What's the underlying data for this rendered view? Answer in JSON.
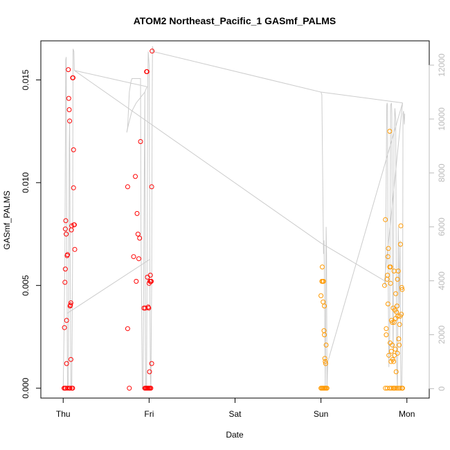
{
  "chart_data": {
    "type": "scatter",
    "title": "ATOM2 Northeast_Pacific_1 GASmf_PALMS",
    "xlabel": "Date",
    "ylabel": "GASmf_PALMS",
    "x_ticks": [
      "Thu",
      "Fri",
      "Sat",
      "Sun",
      "Mon"
    ],
    "x_unit": "days since first tick label",
    "xlim": [
      -0.26,
      4.26
    ],
    "ylim": [
      -0.00048,
      0.0169
    ],
    "y_ticks": [
      "0.000",
      "0.005",
      "0.010",
      "0.015"
    ],
    "y2_ticks": [
      "0",
      "2000",
      "4000",
      "6000",
      "8000",
      "10000",
      "12000"
    ],
    "y2lim": [
      -350,
      12900
    ],
    "colors": {
      "series1": "#ff0000",
      "series2": "#ff9900",
      "altitude_line": "#cccccc"
    },
    "series": [
      {
        "color": "#ff0000",
        "points": [
          [
            0.01,
            0
          ],
          [
            0.02,
            0
          ],
          [
            0.03,
            0
          ],
          [
            0.05,
            0
          ],
          [
            0.07,
            0
          ],
          [
            0.08,
            0
          ],
          [
            0.1,
            0
          ],
          [
            0.11,
            0
          ],
          [
            0.015,
            0.00295
          ],
          [
            0.02,
            0.00515
          ],
          [
            0.025,
            0.0058
          ],
          [
            0.025,
            0.00775
          ],
          [
            0.03,
            0.00815
          ],
          [
            0.035,
            0.0075
          ],
          [
            0.04,
            0.0033
          ],
          [
            0.04,
            0.0012
          ],
          [
            0.045,
            0.00645
          ],
          [
            0.05,
            0.0065
          ],
          [
            0.06,
            0.0155
          ],
          [
            0.065,
            0.0141
          ],
          [
            0.07,
            0.01355
          ],
          [
            0.075,
            0.013
          ],
          [
            0.08,
            0.004
          ],
          [
            0.085,
            0.00405
          ],
          [
            0.09,
            0.00415
          ],
          [
            0.09,
            0.0014
          ],
          [
            0.095,
            0.0077
          ],
          [
            0.1,
            0.0079
          ],
          [
            0.11,
            0.0151
          ],
          [
            0.115,
            0.0151
          ],
          [
            0.12,
            0.0116
          ],
          [
            0.12,
            0.00975
          ],
          [
            0.125,
            0.00795
          ],
          [
            0.13,
            0.00795
          ],
          [
            0.135,
            0.00675
          ],
          [
            0.75,
            0.0098
          ],
          [
            0.75,
            0.0029
          ],
          [
            0.77,
            0
          ],
          [
            0.82,
            0.0064
          ],
          [
            0.84,
            0.0103
          ],
          [
            0.85,
            0.0052
          ],
          [
            0.86,
            0.0085
          ],
          [
            0.87,
            0.0075
          ],
          [
            0.88,
            0.0063
          ],
          [
            0.89,
            0.0073
          ],
          [
            0.9,
            0.012
          ],
          [
            0.95,
            0
          ],
          [
            0.96,
            0
          ],
          [
            0.97,
            0
          ],
          [
            0.98,
            0
          ],
          [
            0.99,
            0
          ],
          [
            1.0,
            0
          ],
          [
            1.01,
            0
          ],
          [
            1.02,
            0
          ],
          [
            0.94,
            0.0039
          ],
          [
            0.955,
            0.0039
          ],
          [
            0.97,
            0.0154
          ],
          [
            0.975,
            0.0154
          ],
          [
            0.98,
            0.0054
          ],
          [
            0.99,
            0.00395
          ],
          [
            0.995,
            0.0039
          ],
          [
            1.0,
            0.0051
          ],
          [
            1.005,
            0.0008
          ],
          [
            1.01,
            0.0052
          ],
          [
            1.015,
            0.0055
          ],
          [
            1.02,
            0.0052
          ],
          [
            1.025,
            0.0052
          ],
          [
            1.03,
            0.0012
          ],
          [
            1.03,
            0.0098
          ],
          [
            1.035,
            0.0164
          ]
        ]
      },
      {
        "color": "#ff9900",
        "points": [
          [
            3.0,
            0
          ],
          [
            3.01,
            0
          ],
          [
            3.02,
            0
          ],
          [
            3.03,
            0
          ],
          [
            3.04,
            0
          ],
          [
            3.05,
            0
          ],
          [
            3.06,
            0
          ],
          [
            3.07,
            0
          ],
          [
            3.0,
            0.0045
          ],
          [
            3.01,
            0.0052
          ],
          [
            3.015,
            0.0059
          ],
          [
            3.02,
            0.0052
          ],
          [
            3.025,
            0.0042
          ],
          [
            3.03,
            0.0052
          ],
          [
            3.035,
            0.0028
          ],
          [
            3.04,
            0.004
          ],
          [
            3.04,
            0.0026
          ],
          [
            3.045,
            0.00145
          ],
          [
            3.05,
            0.0013
          ],
          [
            3.055,
            0.0012
          ],
          [
            3.06,
            0.0021
          ],
          [
            3.75,
            0
          ],
          [
            3.77,
            0
          ],
          [
            3.8,
            0
          ],
          [
            3.82,
            0
          ],
          [
            3.84,
            0
          ],
          [
            3.85,
            0
          ],
          [
            3.86,
            0
          ],
          [
            3.88,
            0
          ],
          [
            3.9,
            0
          ],
          [
            3.92,
            0
          ],
          [
            3.94,
            0
          ],
          [
            3.95,
            0
          ],
          [
            3.74,
            0.005
          ],
          [
            3.75,
            0.0082
          ],
          [
            3.76,
            0.0026
          ],
          [
            3.76,
            0.0029
          ],
          [
            3.77,
            0.0053
          ],
          [
            3.775,
            0.0055
          ],
          [
            3.78,
            0.0041
          ],
          [
            3.78,
            0.0064
          ],
          [
            3.785,
            0.0068
          ],
          [
            3.79,
            0.0016
          ],
          [
            3.8,
            0.0125
          ],
          [
            3.8,
            0.0059
          ],
          [
            3.805,
            0.0022
          ],
          [
            3.81,
            0.0051
          ],
          [
            3.81,
            0.0059
          ],
          [
            3.815,
            0.0013
          ],
          [
            3.82,
            0.0033
          ],
          [
            3.82,
            0.0018
          ],
          [
            3.83,
            0.0021
          ],
          [
            3.83,
            0.0032
          ],
          [
            3.835,
            0.0014
          ],
          [
            3.84,
            0.0039
          ],
          [
            3.845,
            0.0013
          ],
          [
            3.85,
            0.0057
          ],
          [
            3.85,
            0.0032
          ],
          [
            3.855,
            0.0016
          ],
          [
            3.86,
            0.0038
          ],
          [
            3.865,
            0.0019
          ],
          [
            3.87,
            0.0034
          ],
          [
            3.87,
            0.0046
          ],
          [
            3.875,
            0.0008
          ],
          [
            3.88,
            0.0037
          ],
          [
            3.885,
            0.004
          ],
          [
            3.89,
            0.0053
          ],
          [
            3.89,
            0.0017
          ],
          [
            3.895,
            0.0035
          ],
          [
            3.9,
            0.0057
          ],
          [
            3.905,
            0.0024
          ],
          [
            3.91,
            0.0021
          ],
          [
            3.915,
            0.0031
          ],
          [
            3.92,
            0.0035
          ],
          [
            3.925,
            0.007
          ],
          [
            3.93,
            0.0079
          ],
          [
            3.935,
            0.0036
          ],
          [
            3.94,
            0.0049
          ],
          [
            3.945,
            0.0048
          ]
        ]
      }
    ],
    "altitude_series": {
      "axis": "right",
      "points": [
        [
          0.0,
          0
        ],
        [
          0.01,
          2000
        ],
        [
          0.02,
          5000
        ],
        [
          0.03,
          12200
        ],
        [
          0.035,
          12300
        ],
        [
          0.04,
          8000
        ],
        [
          0.045,
          3000
        ],
        [
          0.05,
          0
        ],
        [
          0.06,
          0
        ],
        [
          0.065,
          4000
        ],
        [
          0.07,
          9000
        ],
        [
          0.075,
          10000
        ],
        [
          0.08,
          6000
        ],
        [
          0.09,
          0
        ],
        [
          0.1,
          0
        ],
        [
          0.11,
          5000
        ],
        [
          0.115,
          12600
        ],
        [
          0.125,
          12500
        ],
        [
          0.13,
          11800
        ],
        [
          0.975,
          11200
        ],
        [
          0.95,
          11000
        ],
        [
          0.9,
          10800
        ],
        [
          0.85,
          10600
        ],
        [
          0.8,
          10300
        ],
        [
          0.76,
          9800
        ],
        [
          0.74,
          9500
        ],
        [
          0.745,
          9600
        ],
        [
          0.75,
          9700
        ],
        [
          0.77,
          11000
        ],
        [
          0.79,
          11400
        ],
        [
          0.8,
          11500
        ],
        [
          0.85,
          11500
        ],
        [
          0.9,
          11500
        ],
        [
          0.905,
          6000
        ],
        [
          0.92,
          0
        ],
        [
          0.93,
          0
        ],
        [
          0.94,
          6000
        ],
        [
          0.95,
          11000
        ],
        [
          0.955,
          3000
        ],
        [
          0.96,
          0
        ],
        [
          0.97,
          0
        ],
        [
          0.98,
          8000
        ],
        [
          0.985,
          11500
        ],
        [
          0.99,
          12500
        ],
        [
          1.0,
          12000
        ],
        [
          1.005,
          8000
        ],
        [
          1.01,
          3000
        ],
        [
          1.015,
          500
        ],
        [
          1.02,
          0
        ],
        [
          1.03,
          4000
        ],
        [
          1.035,
          10000
        ],
        [
          1.04,
          12700
        ],
        [
          1.05,
          12500
        ],
        [
          3.0,
          11000
        ],
        [
          3.01,
          10900
        ],
        [
          3.03,
          5000
        ],
        [
          3.035,
          5500
        ],
        [
          3.04,
          4200
        ],
        [
          3.05,
          0
        ],
        [
          3.06,
          6000
        ],
        [
          3.065,
          5000
        ],
        [
          3.07,
          0
        ],
        [
          3.08,
          1000
        ],
        [
          3.95,
          10600
        ],
        [
          3.74,
          4000
        ],
        [
          3.75,
          3800
        ],
        [
          3.76,
          8000
        ],
        [
          3.765,
          10500
        ],
        [
          3.77,
          10600
        ],
        [
          3.775,
          10500
        ],
        [
          3.78,
          5000
        ],
        [
          3.79,
          800
        ],
        [
          3.8,
          2000
        ],
        [
          3.81,
          10500
        ],
        [
          3.82,
          10600
        ],
        [
          3.825,
          10200
        ],
        [
          3.83,
          5000
        ],
        [
          3.84,
          1000
        ],
        [
          3.85,
          9500
        ],
        [
          3.86,
          10400
        ],
        [
          3.87,
          10000
        ],
        [
          3.88,
          1000
        ],
        [
          3.89,
          0
        ],
        [
          3.9,
          6000
        ],
        [
          3.91,
          3000
        ],
        [
          3.92,
          5500
        ],
        [
          3.93,
          0
        ],
        [
          3.94,
          0
        ],
        [
          3.95,
          2000
        ],
        [
          3.955,
          10200
        ],
        [
          3.96,
          10300
        ],
        [
          3.97,
          9800
        ],
        [
          3.975,
          10200
        ]
      ]
    },
    "connector": {
      "axis": "right",
      "segments": [
        [
          [
            0.13,
            11800
          ],
          [
            3.0,
            5400
          ]
        ],
        [
          [
            0.05,
            2800
          ],
          [
            1.01,
            4800
          ]
        ],
        [
          [
            3.0,
            11000
          ],
          [
            3.95,
            10600
          ]
        ],
        [
          [
            3.0,
            5400
          ],
          [
            3.74,
            4000
          ]
        ]
      ]
    }
  }
}
